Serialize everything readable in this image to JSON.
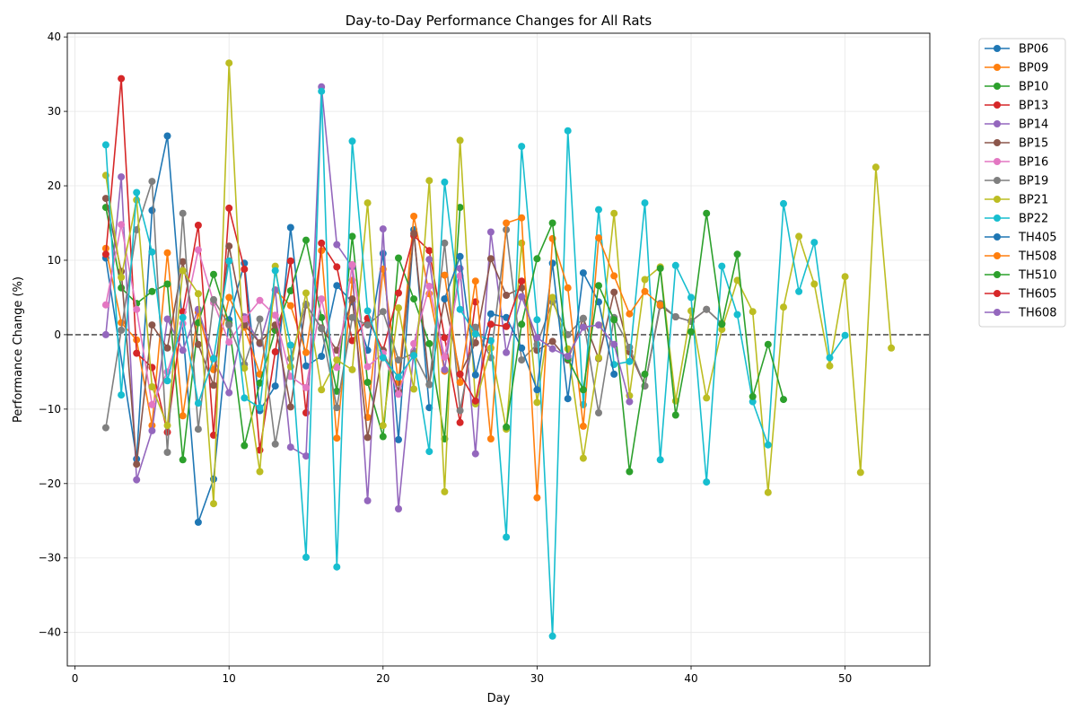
{
  "chart_data": {
    "type": "line",
    "title": "Day-to-Day Performance Changes for All Rats",
    "xlabel": "Day",
    "ylabel": "Performance Change (%)",
    "xlim": [
      -0.5,
      55.5
    ],
    "ylim": [
      -44.5,
      40.5
    ],
    "xticks": [
      0,
      10,
      20,
      30,
      40,
      50
    ],
    "yticks": [
      -40,
      -30,
      -20,
      -10,
      0,
      10,
      20,
      30,
      40
    ],
    "reference_line_y": 0,
    "grid": true,
    "legend_position": "outside-top-right",
    "series": [
      {
        "name": "BP06",
        "color": "#1f77b4",
        "x": [
          2,
          4,
          5,
          6,
          8,
          9,
          10,
          11,
          12,
          13,
          14,
          15,
          16,
          17,
          18,
          19,
          20,
          21,
          22,
          23
        ],
        "y": [
          10.3,
          -16.7,
          16.7,
          26.7,
          -25.2,
          -19.4,
          2.0,
          9.6,
          -10.2,
          -6.9,
          14.4,
          -4.2,
          -2.9,
          6.6,
          4.4,
          -2.1,
          10.9,
          -14.1,
          14.1,
          -9.8
        ]
      },
      {
        "name": "BP09",
        "color": "#ff7f0e",
        "x": [
          2,
          3,
          4,
          5,
          6,
          7,
          8,
          9,
          10,
          11,
          12,
          13,
          14,
          15,
          16,
          17,
          18,
          19,
          20,
          21,
          22,
          23,
          24
        ],
        "y": [
          11.6,
          1.6,
          -0.7,
          -12.2,
          11.0,
          -10.9,
          3.0,
          -4.7,
          5.0,
          1.0,
          -5.3,
          6.0,
          3.9,
          -2.4,
          11.3,
          -13.9,
          7.3,
          -11.1,
          8.8,
          -6.4,
          15.9,
          5.5,
          -4.9
        ]
      },
      {
        "name": "BP10",
        "color": "#2ca02c",
        "x": [
          2,
          3,
          4,
          5,
          6,
          7,
          8,
          9,
          10,
          11,
          12,
          13,
          14,
          15,
          16,
          17,
          18,
          19,
          20,
          21,
          22,
          23,
          24,
          25
        ],
        "y": [
          17.1,
          6.3,
          4.2,
          5.8,
          6.8,
          -16.8,
          1.6,
          8.1,
          1.5,
          -14.9,
          -6.5,
          0.6,
          5.9,
          12.7,
          2.3,
          -7.6,
          13.2,
          -6.4,
          -13.7,
          10.3,
          4.8,
          -1.2,
          -14.0,
          17.1
        ]
      },
      {
        "name": "BP13",
        "color": "#d62728",
        "x": [
          2,
          3,
          4,
          5,
          6,
          7,
          8,
          9,
          10,
          11,
          12,
          13,
          14,
          15,
          16,
          17,
          18,
          19,
          20,
          21,
          22,
          23,
          24,
          25,
          26
        ],
        "y": [
          10.8,
          34.4,
          -2.5,
          -4.4,
          -13.1,
          3.1,
          14.7,
          -13.5,
          17.0,
          8.8,
          -15.5,
          -2.3,
          9.9,
          -10.5,
          12.3,
          9.1,
          -0.8,
          2.2,
          -2.1,
          5.6,
          13.3,
          11.3,
          -0.4,
          -11.8,
          4.4
        ]
      },
      {
        "name": "BP14",
        "color": "#9467bd",
        "x": [
          2,
          3,
          4,
          5,
          6,
          7,
          8,
          9,
          10,
          11,
          12,
          13,
          14,
          15,
          16,
          17,
          18,
          19,
          20,
          21,
          22,
          23,
          24,
          25,
          26,
          27,
          28,
          29
        ],
        "y": [
          0.0,
          21.2,
          -19.5,
          -12.9,
          2.1,
          -2.1,
          3.4,
          -3.2,
          -7.8,
          2.4,
          -1.2,
          6.0,
          -15.1,
          -16.3,
          33.3,
          12.1,
          9.1,
          -22.3,
          14.2,
          -23.4,
          -2.2,
          10.1,
          -4.7,
          8.9,
          -16.0,
          13.8,
          -2.4,
          5.1
        ]
      },
      {
        "name": "BP15",
        "color": "#8c564b",
        "x": [
          2,
          3,
          4,
          5,
          6,
          7,
          8,
          9,
          10,
          11,
          12,
          13,
          14,
          15,
          16,
          17,
          18,
          19,
          20,
          21,
          22,
          23,
          24,
          25,
          26,
          27,
          28,
          29,
          30,
          31,
          32,
          33,
          34,
          35,
          36,
          37,
          38,
          39,
          40,
          41,
          42
        ],
        "y": [
          18.3,
          8.5,
          -17.4,
          1.3,
          -1.8,
          9.8,
          -1.3,
          -6.8,
          11.9,
          1.3,
          -1.1,
          1.3,
          -9.7,
          4.0,
          0.9,
          -2.1,
          4.8,
          -13.8,
          -2.1,
          -7.6,
          13.6,
          -6.7,
          4.8,
          -5.3,
          -1.1,
          10.2,
          5.3,
          6.3,
          -2.1,
          -0.9,
          -3.4,
          2.2,
          -3.2,
          5.7,
          -2.3,
          -6.9,
          3.9,
          2.4,
          1.8,
          3.4,
          1.5
        ]
      },
      {
        "name": "BP16",
        "color": "#e377c2",
        "x": [
          2,
          3,
          4,
          5,
          6,
          7,
          8,
          9,
          10,
          11,
          12,
          13,
          14,
          15,
          16,
          17,
          18,
          19,
          20,
          21,
          22,
          23,
          24,
          25
        ],
        "y": [
          4.0,
          14.8,
          3.4,
          -9.4,
          -5.0,
          1.5,
          11.4,
          4.3,
          -1.0,
          2.1,
          4.6,
          2.6,
          -5.6,
          -7.1,
          4.8,
          -4.4,
          9.4,
          -4.3,
          -2.5,
          -8.0,
          -1.2,
          6.5,
          -3.0,
          7.9
        ]
      },
      {
        "name": "BP19",
        "color": "#7f7f7f",
        "x": [
          2,
          3,
          4,
          5,
          6,
          7,
          8,
          9,
          10,
          11,
          12,
          13,
          14,
          15,
          16,
          17,
          18,
          19,
          20,
          21,
          22,
          23,
          24,
          25,
          26,
          27,
          28,
          29,
          30,
          31,
          32,
          33,
          34,
          35,
          36,
          37,
          38,
          39,
          40,
          41,
          42
        ],
        "y": [
          -12.5,
          0.6,
          14.1,
          20.6,
          -15.8,
          16.3,
          -12.7,
          4.7,
          1.3,
          -4.0,
          2.1,
          -14.7,
          -3.2,
          4.1,
          0.8,
          -9.8,
          2.3,
          1.3,
          3.1,
          -3.4,
          -2.5,
          -6.7,
          12.3,
          -10.2,
          1.0,
          -3.1,
          14.1,
          -3.4,
          -1.3,
          4.4,
          0.0,
          2.2,
          -10.5,
          2.3,
          -1.7,
          -6.9,
          4.2,
          2.4,
          1.8,
          3.4,
          1.5
        ]
      },
      {
        "name": "BP21",
        "color": "#bcbd22",
        "x": [
          2,
          3,
          4,
          5,
          6,
          7,
          8,
          9,
          10,
          11,
          12,
          13,
          14,
          15,
          16,
          17,
          18,
          19,
          20,
          21,
          22,
          23,
          24,
          25,
          26,
          27,
          28,
          29,
          30,
          31,
          32,
          33,
          34,
          35,
          36,
          37,
          38,
          39,
          40,
          41,
          42,
          43,
          44,
          45,
          46,
          47,
          48,
          49,
          50,
          51,
          52,
          53
        ],
        "y": [
          21.4,
          7.7,
          18.1,
          -7.0,
          -12.2,
          8.6,
          5.5,
          -22.7,
          36.5,
          -4.5,
          -18.4,
          9.2,
          -4.3,
          5.6,
          -7.4,
          -3.4,
          -4.7,
          17.7,
          -12.2,
          3.6,
          -7.3,
          20.7,
          -21.1,
          26.1,
          -9.3,
          -1.8,
          -12.7,
          12.3,
          -9.1,
          5.0,
          -1.9,
          -16.6,
          -3.1,
          16.3,
          -8.2,
          7.4,
          9.1,
          -8.9,
          3.2,
          -8.5,
          0.7,
          7.3,
          3.1,
          -21.2,
          3.7,
          13.2,
          6.8,
          -4.2,
          7.8,
          -18.5,
          22.5,
          -1.8
        ]
      },
      {
        "name": "BP22",
        "color": "#17becf",
        "x": [
          2,
          3,
          4,
          5,
          6,
          7,
          8,
          9,
          10,
          11,
          12,
          13,
          14,
          15,
          16,
          17,
          18,
          19,
          20,
          21,
          22,
          23,
          24,
          25,
          26,
          27,
          28,
          29,
          30,
          31,
          32,
          33,
          34,
          35,
          36,
          37,
          38,
          39,
          40,
          41,
          42,
          43,
          44,
          45,
          46,
          47,
          48,
          49,
          50
        ],
        "y": [
          25.5,
          -8.1,
          19.1,
          11.1,
          -6.2,
          2.3,
          -9.2,
          -3.2,
          9.9,
          -8.5,
          -9.8,
          8.6,
          -1.4,
          -29.9,
          32.7,
          -31.2,
          26.0,
          3.2,
          -3.1,
          -5.7,
          -2.8,
          -15.7,
          20.5,
          3.4,
          0.1,
          -0.8,
          -27.2,
          25.3,
          2.0,
          -40.5,
          27.4,
          -9.4,
          16.8,
          -4.0,
          -3.6,
          17.7,
          -16.8,
          9.3,
          5.0,
          -19.8,
          9.2,
          2.7,
          -9.0,
          -14.8,
          17.6,
          5.8,
          12.4,
          -3.1,
          -0.1
        ]
      },
      {
        "name": "TH405",
        "color": "#1f77b4",
        "x": [
          24,
          25,
          26,
          27,
          28,
          29,
          30,
          31,
          32,
          33,
          34,
          35
        ],
        "y": [
          4.8,
          10.5,
          -5.4,
          2.8,
          2.3,
          -1.8,
          -7.4,
          9.6,
          -8.6,
          8.3,
          4.4,
          -5.3
        ]
      },
      {
        "name": "TH508",
        "color": "#ff7f0e",
        "x": [
          24,
          25,
          26,
          27,
          28,
          29,
          30,
          31,
          32,
          33,
          34,
          35,
          36,
          37,
          38
        ],
        "y": [
          8.0,
          -6.4,
          7.2,
          -14.0,
          15.0,
          15.7,
          -21.9,
          12.9,
          6.3,
          -12.3,
          13.0,
          7.9,
          2.8,
          5.8,
          4.0
        ]
      },
      {
        "name": "TH510",
        "color": "#2ca02c",
        "x": [
          28,
          29,
          30,
          31,
          32,
          33,
          34,
          35,
          36,
          37,
          38,
          39,
          40,
          41,
          42,
          43,
          44,
          45,
          46
        ],
        "y": [
          -12.4,
          1.4,
          10.2,
          15.0,
          -3.2,
          -7.4,
          6.6,
          2.0,
          -18.4,
          -5.3,
          8.9,
          -10.8,
          0.4,
          16.3,
          1.4,
          10.8,
          -8.3,
          -1.3,
          -8.7
        ]
      },
      {
        "name": "TH605",
        "color": "#d62728",
        "x": [
          25,
          26,
          27,
          28,
          29
        ],
        "y": [
          -5.3,
          -8.9,
          1.4,
          1.1,
          7.2
        ]
      },
      {
        "name": "TH608",
        "color": "#9467bd",
        "x": [
          29,
          30,
          31,
          32,
          33,
          34,
          35,
          36
        ],
        "y": [
          5.1,
          -0.4,
          -1.9,
          -2.9,
          1.0,
          1.3,
          -1.3,
          -9.0
        ]
      }
    ]
  }
}
